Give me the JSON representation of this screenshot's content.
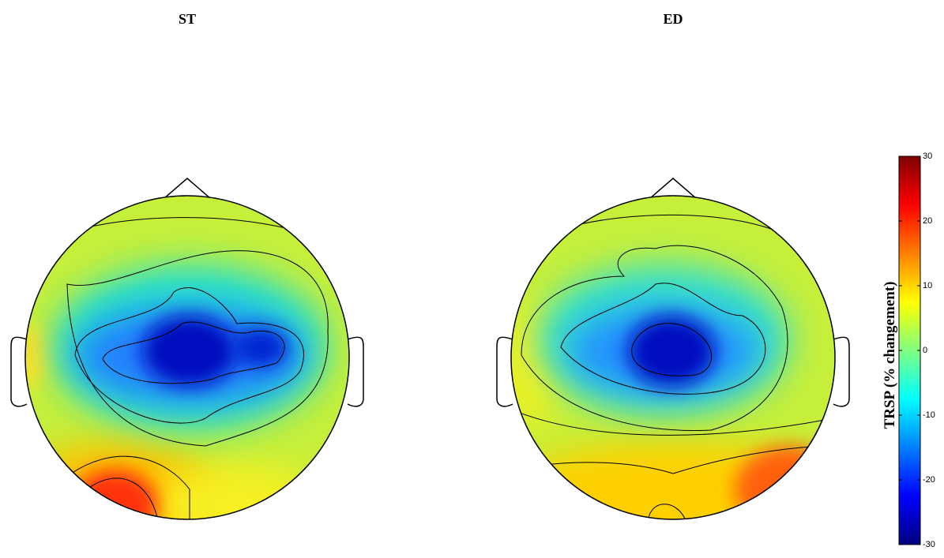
{
  "chart_data": {
    "type": "topoplot",
    "titles": [
      "ST",
      "ED"
    ],
    "colorbar_label": "TRSP (% changement)",
    "colormap": "jet",
    "ylim": [
      -30,
      30
    ],
    "yticks": [
      -30,
      -20,
      -10,
      0,
      10,
      20,
      30
    ]
  }
}
